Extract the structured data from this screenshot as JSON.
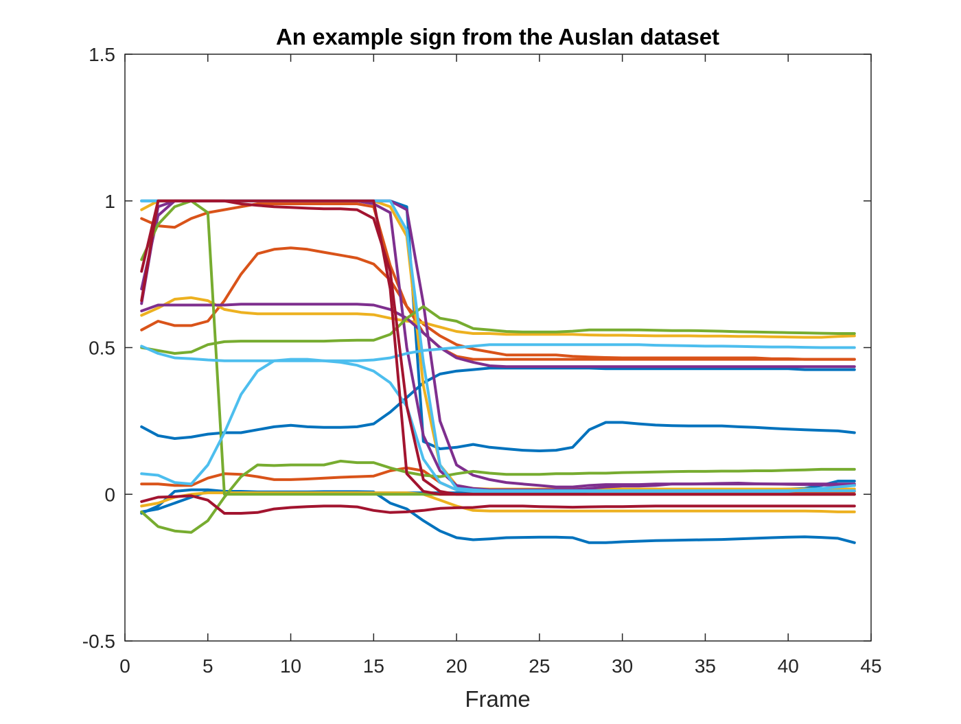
{
  "chart_data": {
    "type": "line",
    "title": "An example sign from the Auslan dataset",
    "xlabel": "Frame",
    "ylabel": "",
    "xlim": [
      0,
      45
    ],
    "ylim": [
      -0.5,
      1.5
    ],
    "xticks": [
      0,
      5,
      10,
      15,
      20,
      25,
      30,
      35,
      40,
      45
    ],
    "yticks": [
      -0.5,
      0,
      0.5,
      1,
      1.5
    ],
    "xtick_labels": [
      "0",
      "5",
      "10",
      "15",
      "20",
      "25",
      "30",
      "35",
      "40",
      "45"
    ],
    "ytick_labels": [
      "-0.5",
      "0",
      "0.5",
      "1",
      "1.5"
    ],
    "grid": false,
    "legend": "none",
    "x": [
      1,
      2,
      3,
      4,
      5,
      6,
      7,
      8,
      9,
      10,
      11,
      12,
      13,
      14,
      15,
      16,
      17,
      18,
      19,
      20,
      21,
      22,
      23,
      24,
      25,
      26,
      27,
      28,
      29,
      30,
      31,
      32,
      33,
      34,
      35,
      36,
      37,
      38,
      39,
      40,
      41,
      42,
      43,
      44
    ],
    "series": [
      {
        "color": "#0072BD",
        "values": [
          1,
          1,
          1,
          1,
          1,
          1,
          1,
          1,
          1,
          1,
          1,
          1,
          1,
          1,
          1,
          1,
          0.98,
          0.18,
          0.155,
          0.16,
          0.17,
          0.16,
          0.155,
          0.15,
          0.148,
          0.15,
          0.16,
          0.22,
          0.245,
          0.245,
          0.24,
          0.236,
          0.234,
          0.233,
          0.233,
          0.233,
          0.23,
          0.228,
          0.225,
          0.222,
          0.22,
          0.218,
          0.216,
          0.21
        ]
      },
      {
        "color": "#0072BD",
        "values": [
          0.23,
          0.2,
          0.19,
          0.195,
          0.205,
          0.21,
          0.21,
          0.22,
          0.23,
          0.235,
          0.23,
          0.228,
          0.228,
          0.23,
          0.24,
          0.28,
          0.33,
          0.38,
          0.41,
          0.42,
          0.425,
          0.43,
          0.43,
          0.43,
          0.43,
          0.43,
          0.43,
          0.43,
          0.428,
          0.428,
          0.428,
          0.428,
          0.428,
          0.428,
          0.428,
          0.428,
          0.428,
          0.428,
          0.428,
          0.428,
          0.425,
          0.425,
          0.425,
          0.425
        ]
      },
      {
        "color": "#0072BD",
        "values": [
          -0.065,
          -0.04,
          0.01,
          0.015,
          0.015,
          0.01,
          0.01,
          0.008,
          0.008,
          0.008,
          0.008,
          0.009,
          0.009,
          0.009,
          0.008,
          -0.03,
          -0.05,
          -0.09,
          -0.125,
          -0.148,
          -0.155,
          -0.152,
          -0.148,
          -0.147,
          -0.146,
          -0.146,
          -0.148,
          -0.165,
          -0.165,
          -0.162,
          -0.16,
          -0.158,
          -0.157,
          -0.156,
          -0.155,
          -0.154,
          -0.152,
          -0.15,
          -0.148,
          -0.146,
          -0.145,
          -0.147,
          -0.15,
          -0.165
        ]
      },
      {
        "color": "#0072BD",
        "values": [
          -0.06,
          -0.05,
          -0.03,
          -0.01,
          0.01,
          0.005,
          0.005,
          0.005,
          0.005,
          0.005,
          0.005,
          0.005,
          0.005,
          0.005,
          0.005,
          0.005,
          0.005,
          0.005,
          0.005,
          0.005,
          0.005,
          0.005,
          0.005,
          0.005,
          0.005,
          0.005,
          0.005,
          0.01,
          0.015,
          0.015,
          0.015,
          0.015,
          0.015,
          0.015,
          0.015,
          0.015,
          0.015,
          0.015,
          0.015,
          0.018,
          0.02,
          0.03,
          0.045,
          0.045
        ]
      },
      {
        "color": "#D95319",
        "values": [
          0.94,
          0.915,
          0.91,
          0.94,
          0.96,
          0.97,
          0.98,
          0.99,
          0.99,
          0.99,
          0.99,
          0.99,
          0.99,
          0.99,
          0.98,
          0.78,
          0.64,
          0.55,
          0.5,
          0.47,
          0.46,
          0.46,
          0.46,
          0.46,
          0.46,
          0.46,
          0.46,
          0.46,
          0.46,
          0.46,
          0.46,
          0.46,
          0.46,
          0.46,
          0.46,
          0.46,
          0.46,
          0.46,
          0.46,
          0.46,
          0.46,
          0.46,
          0.46,
          0.46
        ]
      },
      {
        "color": "#D95319",
        "values": [
          0.56,
          0.59,
          0.575,
          0.575,
          0.59,
          0.66,
          0.75,
          0.82,
          0.835,
          0.84,
          0.835,
          0.825,
          0.815,
          0.805,
          0.785,
          0.73,
          0.64,
          0.58,
          0.54,
          0.51,
          0.495,
          0.485,
          0.475,
          0.475,
          0.475,
          0.475,
          0.47,
          0.468,
          0.466,
          0.465,
          0.465,
          0.465,
          0.465,
          0.465,
          0.465,
          0.465,
          0.465,
          0.465,
          0.462,
          0.462,
          0.46,
          0.46,
          0.46,
          0.46
        ]
      },
      {
        "color": "#D95319",
        "values": [
          0.035,
          0.035,
          0.03,
          0.03,
          0.055,
          0.07,
          0.068,
          0.06,
          0.05,
          0.05,
          0.052,
          0.055,
          0.058,
          0.06,
          0.062,
          0.08,
          0.09,
          0.08,
          0.04,
          0.015,
          0.01,
          0.01,
          0.01,
          0.01,
          0.01,
          0.01,
          0.01,
          0.01,
          0.01,
          0.01,
          0.01,
          0.01,
          0.01,
          0.01,
          0.01,
          0.01,
          0.01,
          0.01,
          0.01,
          0.01,
          0.01,
          0.01,
          0.01,
          0.01
        ]
      },
      {
        "color": "#EDB120",
        "values": [
          0.97,
          1,
          1,
          1,
          1,
          1,
          1,
          1,
          1,
          1,
          1,
          1,
          1,
          1,
          1,
          0.98,
          0.88,
          0.37,
          0.1,
          0.03,
          0.02,
          0.018,
          0.018,
          0.018,
          0.018,
          0.018,
          0.018,
          0.018,
          0.018,
          0.018,
          0.018,
          0.018,
          0.018,
          0.018,
          0.018,
          0.018,
          0.018,
          0.018,
          0.018,
          0.018,
          0.018,
          0.018,
          0.018,
          0.018
        ]
      },
      {
        "color": "#EDB120",
        "values": [
          0.61,
          0.635,
          0.665,
          0.67,
          0.66,
          0.63,
          0.62,
          0.615,
          0.615,
          0.615,
          0.615,
          0.615,
          0.615,
          0.615,
          0.612,
          0.6,
          0.59,
          0.585,
          0.57,
          0.555,
          0.548,
          0.548,
          0.545,
          0.545,
          0.545,
          0.545,
          0.545,
          0.543,
          0.542,
          0.542,
          0.541,
          0.54,
          0.54,
          0.54,
          0.539,
          0.539,
          0.538,
          0.538,
          0.537,
          0.536,
          0.535,
          0.535,
          0.538,
          0.54
        ]
      },
      {
        "color": "#EDB120",
        "values": [
          -0.04,
          -0.03,
          -0.01,
          0,
          0.005,
          0.005,
          0.005,
          0.005,
          0.005,
          0.005,
          0.005,
          0.005,
          0.005,
          0.005,
          0.005,
          0.005,
          0.005,
          0,
          -0.02,
          -0.04,
          -0.055,
          -0.057,
          -0.057,
          -0.057,
          -0.057,
          -0.057,
          -0.057,
          -0.057,
          -0.057,
          -0.057,
          -0.057,
          -0.057,
          -0.057,
          -0.057,
          -0.057,
          -0.057,
          -0.057,
          -0.057,
          -0.057,
          -0.057,
          -0.057,
          -0.058,
          -0.06,
          -0.06
        ]
      },
      {
        "color": "#7E2F8E",
        "values": [
          0.7,
          0.95,
          1,
          1,
          1,
          1,
          1,
          1,
          1,
          1,
          1,
          1,
          1,
          1,
          1,
          1,
          0.97,
          0.65,
          0.25,
          0.1,
          0.065,
          0.05,
          0.04,
          0.035,
          0.03,
          0.025,
          0.025,
          0.03,
          0.033,
          0.033,
          0.033,
          0.035,
          0.035,
          0.035,
          0.036,
          0.037,
          0.038,
          0.036,
          0.035,
          0.034,
          0.033,
          0.032,
          0.031,
          0.03
        ]
      },
      {
        "color": "#7E2F8E",
        "values": [
          0.625,
          0.645,
          0.645,
          0.645,
          0.645,
          0.645,
          0.648,
          0.648,
          0.648,
          0.648,
          0.648,
          0.648,
          0.648,
          0.648,
          0.645,
          0.63,
          0.6,
          0.55,
          0.5,
          0.465,
          0.45,
          0.438,
          0.435,
          0.435,
          0.435,
          0.435,
          0.435,
          0.435,
          0.435,
          0.435,
          0.435,
          0.435,
          0.435,
          0.435,
          0.435,
          0.435,
          0.435,
          0.435,
          0.435,
          0.435,
          0.435,
          0.435,
          0.435,
          0.435
        ]
      },
      {
        "color": "#7E2F8E",
        "values": [
          0.65,
          0.98,
          1,
          1,
          1,
          1,
          1,
          1,
          1,
          1,
          1,
          1,
          1,
          1,
          0.99,
          0.96,
          0.5,
          0.2,
          0.08,
          0.03,
          0.02,
          0.015,
          0.015,
          0.015,
          0.015,
          0.015,
          0.015,
          0.02,
          0.025,
          0.028,
          0.028,
          0.03,
          0.035,
          0.035,
          0.035,
          0.035,
          0.035,
          0.035,
          0.035,
          0.035,
          0.035,
          0.035,
          0.035,
          0.035
        ]
      },
      {
        "color": "#77AC30",
        "values": [
          0.8,
          0.92,
          0.98,
          1,
          0.96,
          0,
          0,
          0,
          0,
          0,
          0,
          0,
          0,
          0,
          0,
          0,
          0,
          0,
          0,
          0,
          0,
          0,
          0,
          0,
          0,
          0,
          0,
          0,
          0,
          0,
          0,
          0,
          0,
          0,
          0,
          0,
          0,
          0,
          0,
          0,
          0,
          0,
          0,
          0
        ]
      },
      {
        "color": "#77AC30",
        "values": [
          0.5,
          0.49,
          0.48,
          0.485,
          0.51,
          0.52,
          0.522,
          0.522,
          0.522,
          0.522,
          0.522,
          0.522,
          0.524,
          0.525,
          0.525,
          0.545,
          0.6,
          0.64,
          0.6,
          0.59,
          0.565,
          0.56,
          0.555,
          0.553,
          0.553,
          0.553,
          0.556,
          0.56,
          0.56,
          0.56,
          0.56,
          0.559,
          0.558,
          0.558,
          0.557,
          0.556,
          0.554,
          0.553,
          0.552,
          0.551,
          0.55,
          0.549,
          0.548,
          0.548
        ]
      },
      {
        "color": "#77AC30",
        "values": [
          -0.06,
          -0.11,
          -0.125,
          -0.13,
          -0.09,
          -0.01,
          0.06,
          0.1,
          0.098,
          0.1,
          0.1,
          0.1,
          0.113,
          0.108,
          0.108,
          0.09,
          0.075,
          0.065,
          0.06,
          0.07,
          0.078,
          0.072,
          0.068,
          0.068,
          0.068,
          0.07,
          0.07,
          0.072,
          0.072,
          0.074,
          0.075,
          0.076,
          0.077,
          0.078,
          0.078,
          0.079,
          0.079,
          0.08,
          0.08,
          0.082,
          0.083,
          0.085,
          0.085,
          0.085
        ]
      },
      {
        "color": "#4DBEEE",
        "values": [
          1,
          1,
          1,
          1,
          1,
          1,
          1,
          1,
          1,
          1,
          1,
          1,
          1,
          1,
          1,
          1,
          0.9,
          0.45,
          0.1,
          0.02,
          0.015,
          0.012,
          0.012,
          0.012,
          0.012,
          0.012,
          0.012,
          0.012,
          0.012,
          0.012,
          0.012,
          0.012,
          0.012,
          0.012,
          0.012,
          0.012,
          0.012,
          0.012,
          0.012,
          0.012,
          0.012,
          0.012,
          0.012,
          0.012
        ]
      },
      {
        "color": "#4DBEEE",
        "values": [
          0.505,
          0.48,
          0.465,
          0.462,
          0.458,
          0.455,
          0.455,
          0.455,
          0.455,
          0.455,
          0.455,
          0.455,
          0.455,
          0.455,
          0.458,
          0.465,
          0.48,
          0.49,
          0.495,
          0.5,
          0.505,
          0.51,
          0.51,
          0.51,
          0.51,
          0.51,
          0.51,
          0.51,
          0.51,
          0.51,
          0.51,
          0.508,
          0.507,
          0.506,
          0.505,
          0.505,
          0.504,
          0.503,
          0.502,
          0.502,
          0.501,
          0.5,
          0.5,
          0.5
        ]
      },
      {
        "color": "#4DBEEE",
        "values": [
          0.07,
          0.065,
          0.04,
          0.035,
          0.1,
          0.21,
          0.34,
          0.42,
          0.455,
          0.46,
          0.46,
          0.455,
          0.45,
          0.44,
          0.42,
          0.38,
          0.3,
          0.12,
          0.04,
          0.015,
          0.01,
          0.01,
          0.01,
          0.01,
          0.01,
          0.01,
          0.01,
          0.01,
          0.01,
          0.01,
          0.01,
          0.01,
          0.01,
          0.01,
          0.01,
          0.01,
          0.01,
          0.01,
          0.01,
          0.01,
          0.015,
          0.02,
          0.025,
          0.03
        ]
      },
      {
        "color": "#A2142F",
        "values": [
          0.76,
          1,
          1,
          1,
          1,
          1,
          0.99,
          0.985,
          0.98,
          0.978,
          0.975,
          0.973,
          0.973,
          0.97,
          0.94,
          0.76,
          0.3,
          0.05,
          0.01,
          0,
          0,
          0,
          0,
          0,
          0,
          0,
          0,
          0,
          0,
          0,
          0,
          0,
          0,
          0,
          0,
          0,
          0,
          0,
          0,
          0,
          0,
          0,
          0,
          0
        ]
      },
      {
        "color": "#A2142F",
        "values": [
          0.66,
          1,
          1,
          1,
          1,
          1,
          1,
          1,
          1,
          1,
          1,
          1,
          1,
          1,
          1,
          0.7,
          0.07,
          0.01,
          0,
          0,
          0,
          0,
          0,
          0,
          0,
          0,
          0,
          0,
          0,
          0,
          0,
          0,
          0,
          0,
          0,
          0,
          0,
          0,
          0,
          0,
          0,
          0,
          0,
          0
        ]
      },
      {
        "color": "#A2142F",
        "values": [
          -0.025,
          -0.01,
          -0.008,
          -0.005,
          -0.02,
          -0.065,
          -0.065,
          -0.062,
          -0.05,
          -0.045,
          -0.042,
          -0.04,
          -0.04,
          -0.043,
          -0.055,
          -0.062,
          -0.06,
          -0.055,
          -0.048,
          -0.046,
          -0.045,
          -0.04,
          -0.04,
          -0.04,
          -0.042,
          -0.043,
          -0.044,
          -0.043,
          -0.042,
          -0.042,
          -0.041,
          -0.04,
          -0.04,
          -0.04,
          -0.04,
          -0.04,
          -0.04,
          -0.04,
          -0.04,
          -0.04,
          -0.04,
          -0.04,
          -0.04,
          -0.04
        ]
      }
    ]
  }
}
